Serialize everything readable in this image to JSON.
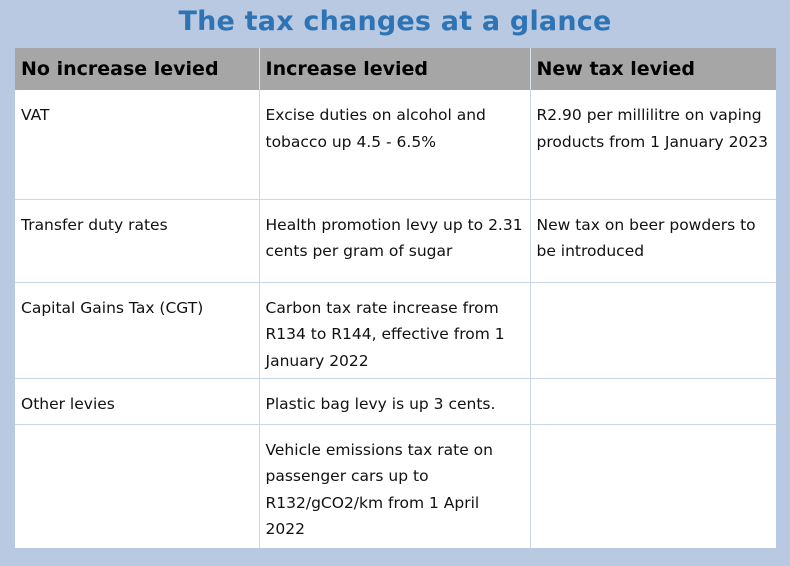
{
  "title": "The tax changes at a glance",
  "table": {
    "headers": [
      "No increase levied",
      "Increase levied",
      "New tax levied"
    ],
    "rows": [
      [
        "VAT",
        "Excise duties on alcohol and tobacco up 4.5 - 6.5%",
        "R2.90 per millilitre on vaping products from 1 January 2023"
      ],
      [
        "Transfer duty rates",
        "Health promotion levy up to 2.31 cents per gram of sugar",
        "New tax on beer powders to be introduced"
      ],
      [
        "Capital Gains Tax (CGT)",
        "Carbon tax rate increase from R134 to R144, effective from 1 January 2022",
        ""
      ],
      [
        "Other levies",
        "Plastic bag levy is up 3 cents.",
        ""
      ],
      [
        "",
        "Vehicle emissions tax rate on passenger cars up to R132/gCO2/km from 1 April 2022",
        ""
      ]
    ]
  },
  "colors": {
    "background": "#b8c9e1",
    "title": "#2e74b5",
    "header_bg": "#a6a6a6",
    "cell_bg": "#ffffff",
    "grid": "#c9d6e8"
  }
}
